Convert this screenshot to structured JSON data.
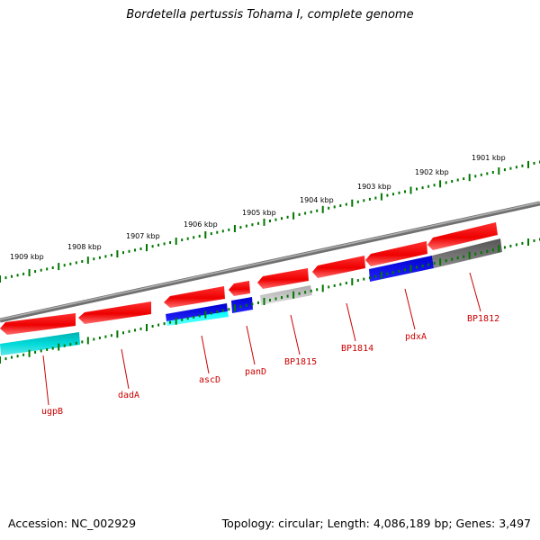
{
  "title": "Bordetella pertussis Tohama I, complete genome",
  "footer": {
    "accession": "Accession: NC_002929",
    "stats": "Topology: circular; Length: 4,086,189 bp; Genes: 3,497"
  },
  "ruler": {
    "labels": [
      "1901 kbp",
      "1902 kbp",
      "1903 kbp",
      "1904 kbp",
      "1905 kbp",
      "1906 kbp",
      "1907 kbp",
      "1908 kbp",
      "1909 kbp"
    ]
  },
  "genes": [
    {
      "label": "ugpB",
      "color": "#cc0000"
    },
    {
      "label": "dadA",
      "color": "#cc0000"
    },
    {
      "label": "ascD",
      "color": "#cc0000"
    },
    {
      "label": "panD",
      "color": "#cc0000"
    },
    {
      "label": "BP1815",
      "color": "#cc0000"
    },
    {
      "label": "BP1814",
      "color": "#cc0000"
    },
    {
      "label": "pdxA",
      "color": "#cc0000"
    },
    {
      "label": "BP1812",
      "color": "#cc0000"
    }
  ],
  "colors": {
    "cds_forward": "#ff0000",
    "rna_track": "#0000ee",
    "rna_track_light": "#00ffff",
    "teal_track": "#00c8c8",
    "gray_track": "#666666",
    "light_gray_track": "#c0c0c0",
    "backbone": "#808080",
    "ticks": "#007700"
  }
}
